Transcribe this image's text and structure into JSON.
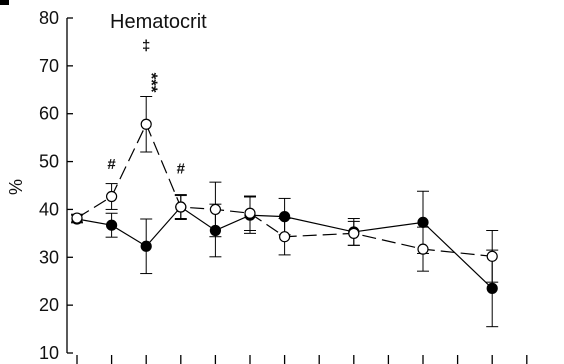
{
  "chart_data": {
    "type": "line",
    "title": "Hematocrit",
    "xlabel": "",
    "ylabel": "%",
    "ylim": [
      10,
      80
    ],
    "yticks": [
      "10",
      "20",
      "30",
      "40",
      "50",
      "60",
      "70",
      "80"
    ],
    "grid": false,
    "x": [
      1,
      2,
      3,
      4,
      5,
      6,
      7,
      8,
      9,
      10,
      11,
      12,
      13,
      14
    ],
    "series": [
      {
        "marker": "filled-circle",
        "line": "solid",
        "points": [
          {
            "x": 1,
            "y": 38,
            "err": 0.8
          },
          {
            "x": 2,
            "y": 36.7,
            "err": 2.5
          },
          {
            "x": 3,
            "y": 32.3,
            "err": 5.7
          },
          {
            "x": 4,
            "y": 40.5,
            "err": 2.6
          },
          {
            "x": 5,
            "y": 35.6,
            "err": 5.5
          },
          {
            "x": 6,
            "y": 38.8,
            "err": 3.8
          },
          {
            "x": 7,
            "y": 38.5,
            "err": 3.8
          },
          {
            "x": 9,
            "y": 35.3,
            "err": 2.8
          },
          {
            "x": 11,
            "y": 37.3,
            "err": 6.5
          },
          {
            "x": 13,
            "y": 23.5,
            "err": 8
          }
        ]
      },
      {
        "marker": "open-circle",
        "line": "dashed",
        "points": [
          {
            "x": 1,
            "y": 38.2,
            "err": 0.8
          },
          {
            "x": 2,
            "y": 42.7,
            "err": 2.7
          },
          {
            "x": 3,
            "y": 57.8,
            "err": 5.8
          },
          {
            "x": 4,
            "y": 40.5,
            "err": 2.4
          },
          {
            "x": 5,
            "y": 40,
            "err": 5.7
          },
          {
            "x": 6,
            "y": 39.2,
            "err": 3.6
          },
          {
            "x": 7,
            "y": 34.3,
            "err": 3.8
          },
          {
            "x": 9,
            "y": 35,
            "err": 2.5
          },
          {
            "x": 11,
            "y": 31.7,
            "err": 4.6
          },
          {
            "x": 13,
            "y": 30.2,
            "err": 5.4
          }
        ]
      }
    ],
    "annotations": [
      {
        "text": "#",
        "x": 2,
        "y": 48.5
      },
      {
        "text": "***",
        "x": 3,
        "y": 66.5
      },
      {
        "text": "‡",
        "x": 3,
        "y": 73.2
      },
      {
        "text": "#",
        "x": 4,
        "y": 47.5
      }
    ]
  }
}
